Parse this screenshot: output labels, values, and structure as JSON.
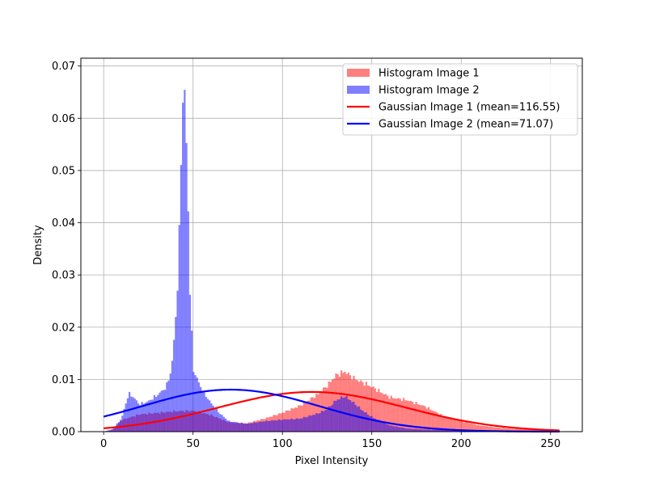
{
  "chart_data": {
    "type": "histogram",
    "xlabel": "Pixel Intensity",
    "ylabel": "Density",
    "xlim": [
      -12.75,
      267.75
    ],
    "ylim": [
      0,
      0.0715
    ],
    "xticks": [
      0,
      50,
      100,
      150,
      200,
      250
    ],
    "yticks": [
      0.0,
      0.01,
      0.02,
      0.03,
      0.04,
      0.05,
      0.06,
      0.07
    ],
    "ytick_labels": [
      "0.00",
      "0.01",
      "0.02",
      "0.03",
      "0.04",
      "0.05",
      "0.06",
      "0.07"
    ],
    "grid": true,
    "legend_position": "upper right",
    "bins": 256,
    "bin_range": [
      0,
      255
    ],
    "histograms": [
      {
        "name": "Histogram Image 1",
        "color": "#ff0000",
        "alpha": 0.5,
        "profile": {
          "x": [
            0,
            5,
            10,
            20,
            30,
            40,
            50,
            60,
            70,
            80,
            90,
            100,
            110,
            120,
            125,
            130,
            135,
            140,
            150,
            160,
            170,
            180,
            190,
            200,
            210,
            220,
            230,
            240,
            250,
            255
          ],
          "y": [
            0,
            0.0003,
            0.0022,
            0.0033,
            0.0036,
            0.0039,
            0.004,
            0.0032,
            0.0018,
            0.0016,
            0.0025,
            0.0036,
            0.005,
            0.0072,
            0.0088,
            0.0108,
            0.0115,
            0.0102,
            0.0086,
            0.0066,
            0.006,
            0.0048,
            0.003,
            0.002,
            0.0012,
            0.0008,
            0.0005,
            0.0004,
            0.0002,
            0.0001
          ]
        }
      },
      {
        "name": "Histogram Image 2",
        "color": "#0000ff",
        "alpha": 0.5,
        "profile": {
          "x": [
            0,
            5,
            10,
            14,
            17,
            20,
            25,
            30,
            35,
            38,
            40,
            42,
            43,
            44,
            45,
            46,
            47,
            48,
            50,
            55,
            60,
            65,
            70,
            80,
            90,
            100,
            110,
            120,
            125,
            130,
            135,
            140,
            145,
            150,
            160,
            170,
            180,
            190,
            200,
            210,
            220,
            230,
            240,
            250,
            255
          ],
          "y": [
            0,
            0.0005,
            0.0025,
            0.0073,
            0.0065,
            0.0052,
            0.0058,
            0.007,
            0.0085,
            0.012,
            0.02,
            0.032,
            0.048,
            0.062,
            0.0675,
            0.058,
            0.048,
            0.03,
            0.012,
            0.008,
            0.0055,
            0.0035,
            0.002,
            0.0015,
            0.002,
            0.0023,
            0.0025,
            0.0035,
            0.0043,
            0.006,
            0.0068,
            0.0055,
            0.004,
            0.0028,
            0.0012,
            0.0006,
            0.0004,
            0.0003,
            0.0002,
            0.0002,
            0.0001,
            0.0001,
            0.0001,
            0.0001,
            0
          ]
        }
      }
    ],
    "series": [
      {
        "name": "Gaussian Image 1 (mean=116.55)",
        "color": "#ff0000",
        "mean": 116.55,
        "std": 52.5,
        "x_range": [
          0,
          255
        ]
      },
      {
        "name": "Gaussian Image 2 (mean=71.07)",
        "color": "#0000ff",
        "mean": 71.07,
        "std": 49.6,
        "x_range": [
          0,
          255
        ]
      }
    ],
    "legend": [
      {
        "label": "Histogram Image 1",
        "kind": "patch",
        "color": "#ff0000",
        "alpha": 0.5
      },
      {
        "label": "Histogram Image 2",
        "kind": "patch",
        "color": "#0000ff",
        "alpha": 0.5
      },
      {
        "label": "Gaussian Image 1 (mean=116.55)",
        "kind": "line",
        "color": "#ff0000"
      },
      {
        "label": "Gaussian Image 2 (mean=71.07)",
        "kind": "line",
        "color": "#0000ff"
      }
    ]
  }
}
